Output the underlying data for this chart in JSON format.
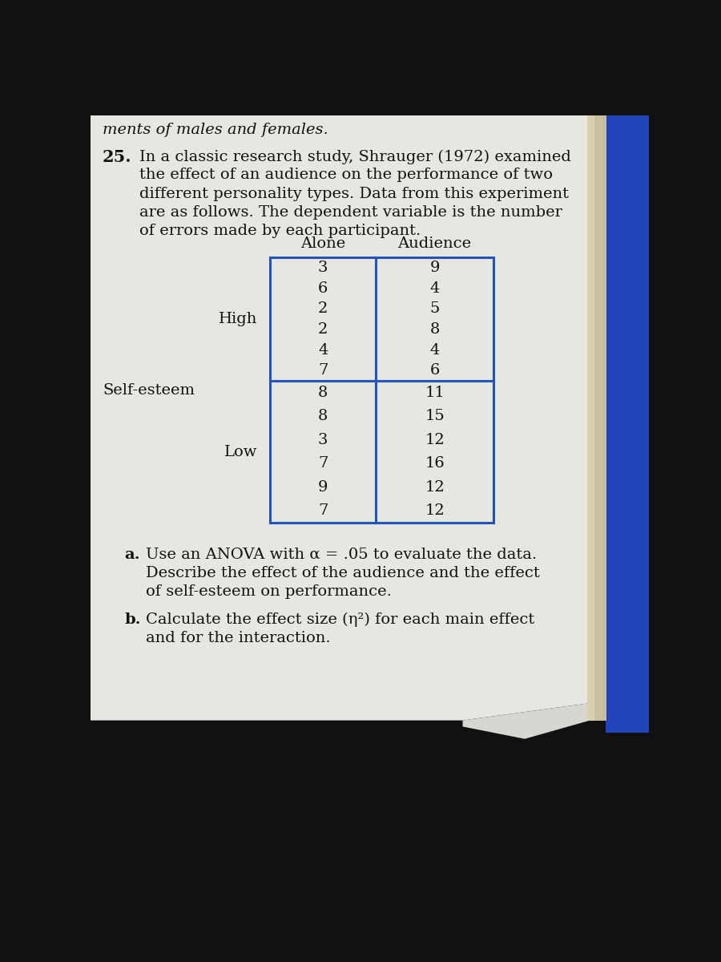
{
  "problem_number": "25.",
  "top_text": "ments of males and females.",
  "intro_lines": [
    "In a classic research study, Shrauger (1972) examined",
    "the effect of an audience on the performance of two",
    "different personality types. Data from this experiment",
    "are as follows. The dependent variable is the number",
    "of errors made by each participant."
  ],
  "col_headers": [
    "Alone",
    "Audience"
  ],
  "row_label_outer": "Self-esteem",
  "row_label_high": "High",
  "row_label_low": "Low",
  "high_alone": [
    "3",
    "6",
    "2",
    "2",
    "4",
    "7"
  ],
  "high_audience": [
    "9",
    "4",
    "5",
    "8",
    "4",
    "6"
  ],
  "low_alone": [
    "8",
    "8",
    "3",
    "7",
    "9",
    "7"
  ],
  "low_audience": [
    "11",
    "15",
    "12",
    "16",
    "12",
    "12"
  ],
  "part_a_label": "a.",
  "part_a_lines": [
    "Use an ANOVA with α = .05 to evaluate the data.",
    "Describe the effect of the audience and the effect",
    "of self-esteem on performance."
  ],
  "part_b_label": "b.",
  "part_b_lines": [
    "Calculate the effect size (η²) for each main effect",
    "and for the interaction."
  ],
  "paper_color": "#e8e6e0",
  "table_border_color": "#2255bb",
  "text_color": "#111111",
  "blue_spine_color": "#2244bb",
  "bg_color": "#111111",
  "font_size_body": 14,
  "font_size_small": 12
}
